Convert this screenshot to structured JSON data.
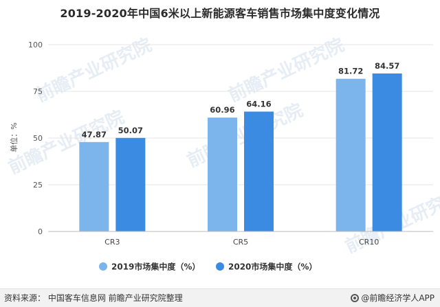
{
  "chart_data": {
    "type": "bar",
    "title": "2019-2020年中国6米以上新能源客车销售市场集中度变化情况",
    "ylabel": "单位：%",
    "xlabel": "",
    "ylim": [
      0,
      100
    ],
    "yticks": [
      0,
      25,
      50,
      75,
      100
    ],
    "categories": [
      "CR3",
      "CR5",
      "CR10"
    ],
    "series": [
      {
        "name": "2019市场集中度（%）",
        "color": "#7cb5ec",
        "values": [
          47.87,
          60.96,
          81.72
        ]
      },
      {
        "name": "2020市场集中度（%）",
        "color": "#3c8be2",
        "values": [
          50.07,
          64.16,
          84.57
        ]
      }
    ],
    "grid": true,
    "legend_position": "bottom"
  },
  "footer": {
    "source": "资料来源：  中国客车信息网 前瞻产业研究院整理",
    "brand": "@前瞻经济学人APP"
  },
  "watermark": "前瞻产业研究院"
}
